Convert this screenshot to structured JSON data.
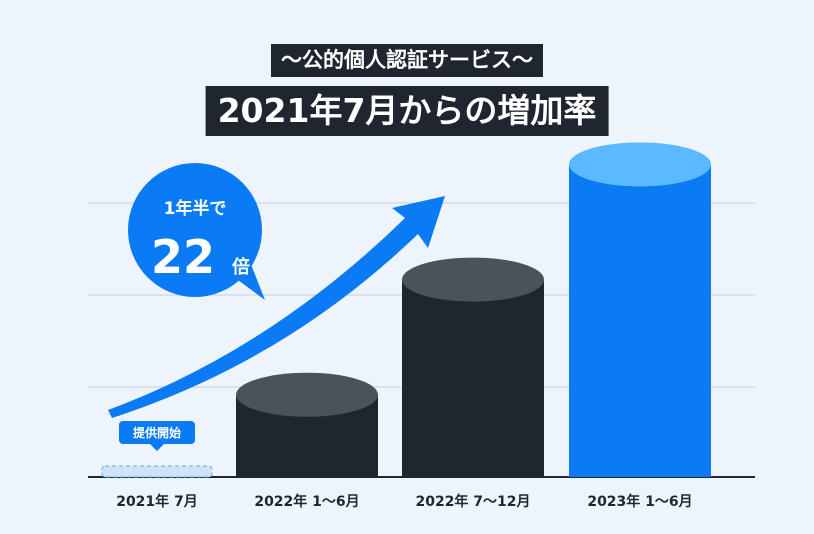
{
  "header": {
    "subtitle": "〜公的個人認証サービス〜",
    "title": "2021年7月からの増加率"
  },
  "callout": {
    "line1": "1年半で",
    "big": "22",
    "unit": "倍"
  },
  "start_badge": "提供開始",
  "colors": {
    "dark_bar": "#1f2630",
    "dark_top": "#4a525c",
    "blue_bar": "#0a7af5",
    "blue_top": "#5ab9ff",
    "start_fill": "#cfe4fb",
    "accent": "#0a7af5"
  },
  "chart_data": {
    "type": "bar",
    "categories": [
      "2021年 7月",
      "2022年 1〜6月",
      "2022年 7〜12月",
      "2023年 1〜6月"
    ],
    "values": [
      1,
      7.5,
      18,
      28.5
    ],
    "ylim": [
      0,
      30
    ],
    "grid": true
  }
}
